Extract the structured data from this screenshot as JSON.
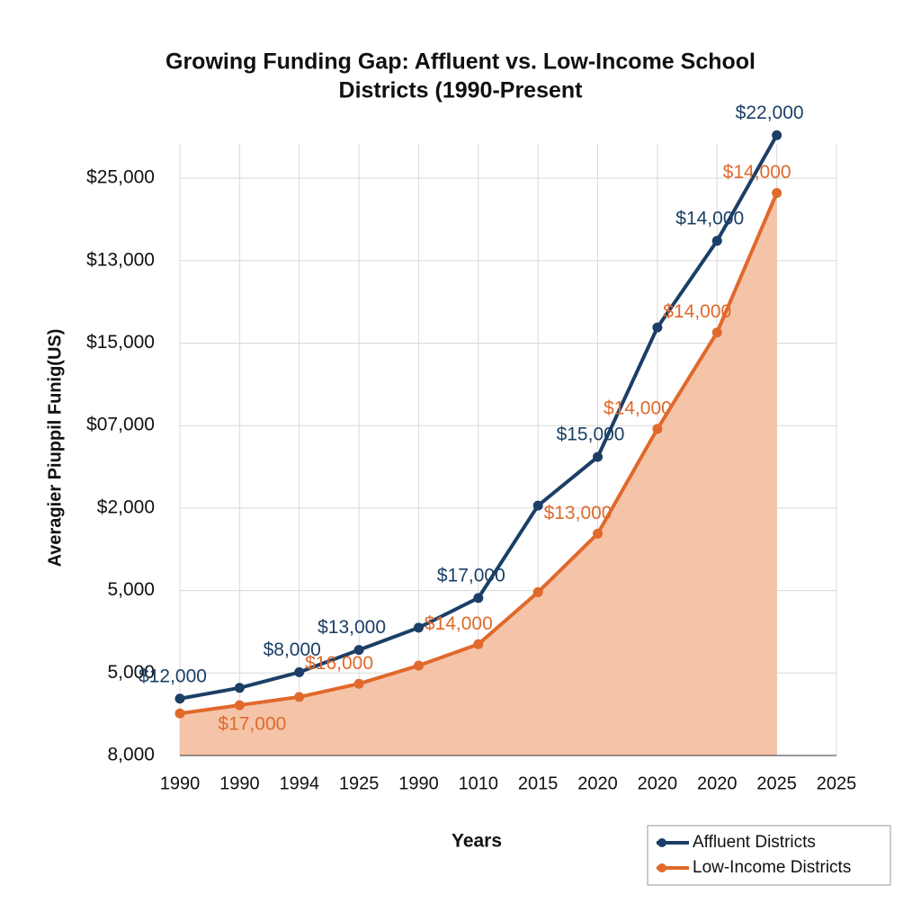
{
  "chart_data": {
    "type": "line",
    "title": [
      "Growing Funding Gap: Affluent vs. Low-Income School",
      "Districts (1990-Present"
    ],
    "x_label": "Years",
    "y_label": "Averagier Piuppil Funig(US)",
    "categories": [
      "1990",
      "1990",
      "1994",
      "1925",
      "1990",
      "1010",
      "2015",
      "2020",
      "2020",
      "2020",
      "2025",
      "2025"
    ],
    "ylim": [
      0,
      7.6
    ],
    "yticks": [
      {
        "value": 0,
        "label": "8,000"
      },
      {
        "value": 1,
        "label": "5,000"
      },
      {
        "value": 2,
        "label": "5,000"
      },
      {
        "value": 3,
        "label": "$2,000"
      },
      {
        "value": 4,
        "label": "$07,000"
      },
      {
        "value": 5,
        "label": "$15,000"
      },
      {
        "value": 6,
        "label": "$13,000"
      },
      {
        "value": 7,
        "label": "$25,000"
      }
    ],
    "grid": true,
    "legend": "lower right",
    "series": [
      {
        "name": "Affluent Districts",
        "color": "#1b3f66",
        "values": [
          0.69,
          0.82,
          1.01,
          1.28,
          1.55,
          1.91,
          3.03,
          3.62,
          5.19,
          6.24,
          7.52,
          null
        ],
        "point_labels": [
          "$12,000",
          null,
          "$8,000",
          "$13,000",
          null,
          "$17,000",
          null,
          "$15,000",
          null,
          "$14,000",
          "$22,000",
          null
        ]
      },
      {
        "name": "Low-Income Districts",
        "color": "#e0692b",
        "area_color": "#f5c4a8",
        "values": [
          0.51,
          0.61,
          0.71,
          0.87,
          1.09,
          1.35,
          1.98,
          2.69,
          3.96,
          5.13,
          6.82,
          null
        ],
        "point_labels": [
          null,
          "$17,000",
          null,
          "$16,000",
          null,
          "$14,000",
          null,
          "$13,000",
          "$14,000",
          "$14,000",
          "$14,000",
          null
        ]
      }
    ]
  }
}
